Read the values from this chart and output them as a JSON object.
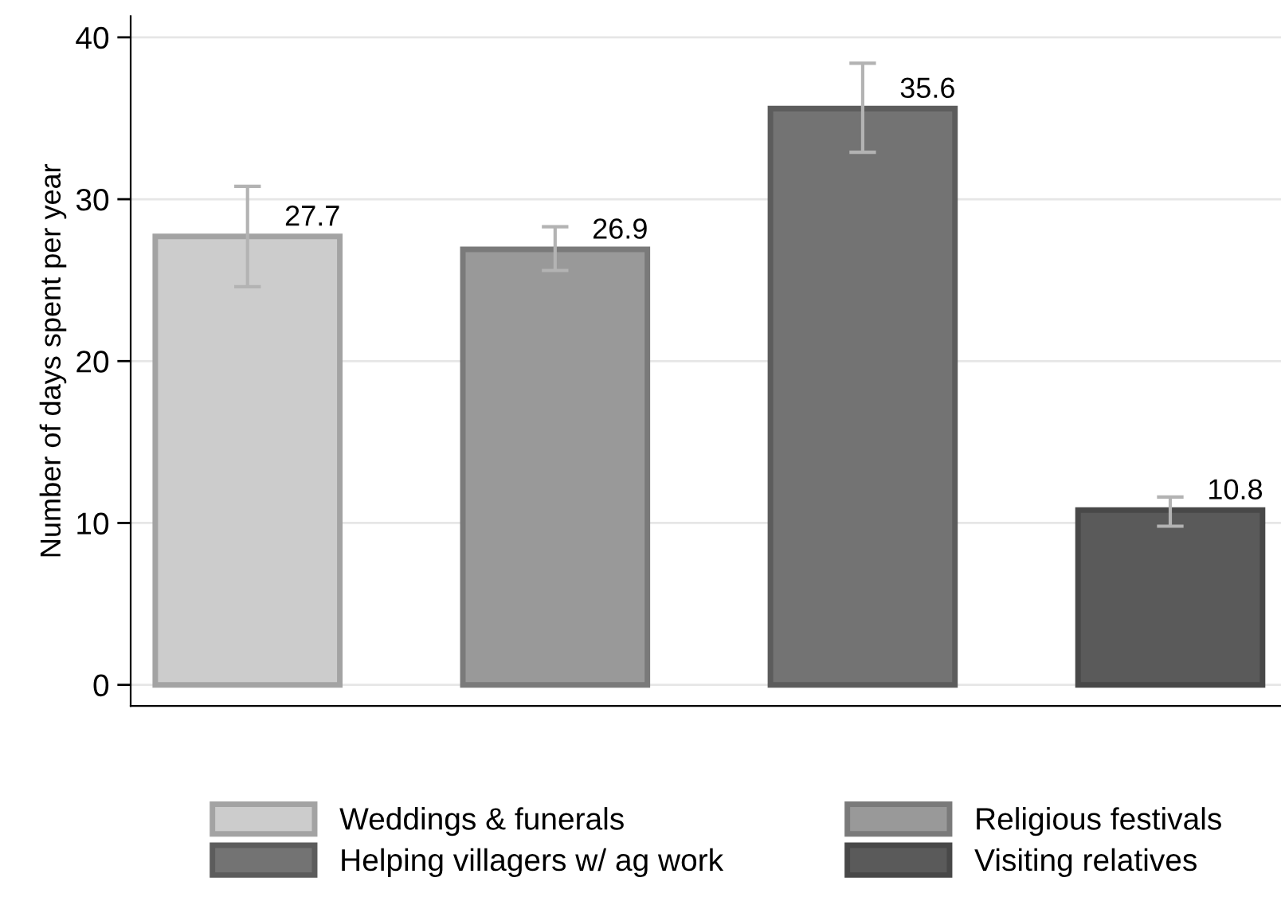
{
  "chart_data": {
    "type": "bar",
    "ylabel": "Number of days spent per year",
    "categories": [
      null,
      null,
      null,
      null
    ],
    "series": [
      {
        "name": "Weddings & funerals",
        "color": "#cccccc",
        "values": [
          27.7,
          null,
          null,
          null
        ],
        "errors": [
          [
            24.6,
            30.8
          ],
          null,
          null,
          null
        ]
      },
      {
        "name": "Religious festivals",
        "color": "#999999",
        "values": [
          null,
          26.9,
          null,
          null
        ],
        "errors": [
          null,
          [
            25.6,
            28.3
          ],
          null,
          null
        ]
      },
      {
        "name": "Helping villagers w/ ag work",
        "color": "#737373",
        "values": [
          null,
          null,
          35.6,
          null
        ],
        "errors": [
          null,
          null,
          [
            32.9,
            38.4
          ],
          null
        ]
      },
      {
        "name": "Visiting relatives",
        "color": "#5a5a5a",
        "values": [
          null,
          null,
          null,
          10.8
        ],
        "errors": [
          null,
          null,
          null,
          [
            9.8,
            11.6
          ]
        ]
      }
    ],
    "ylim": [
      -1.3,
      41.3
    ],
    "yticks": [
      0,
      10,
      20,
      30,
      40
    ],
    "grid": "y",
    "legend": "bottom",
    "data_labels": true
  }
}
